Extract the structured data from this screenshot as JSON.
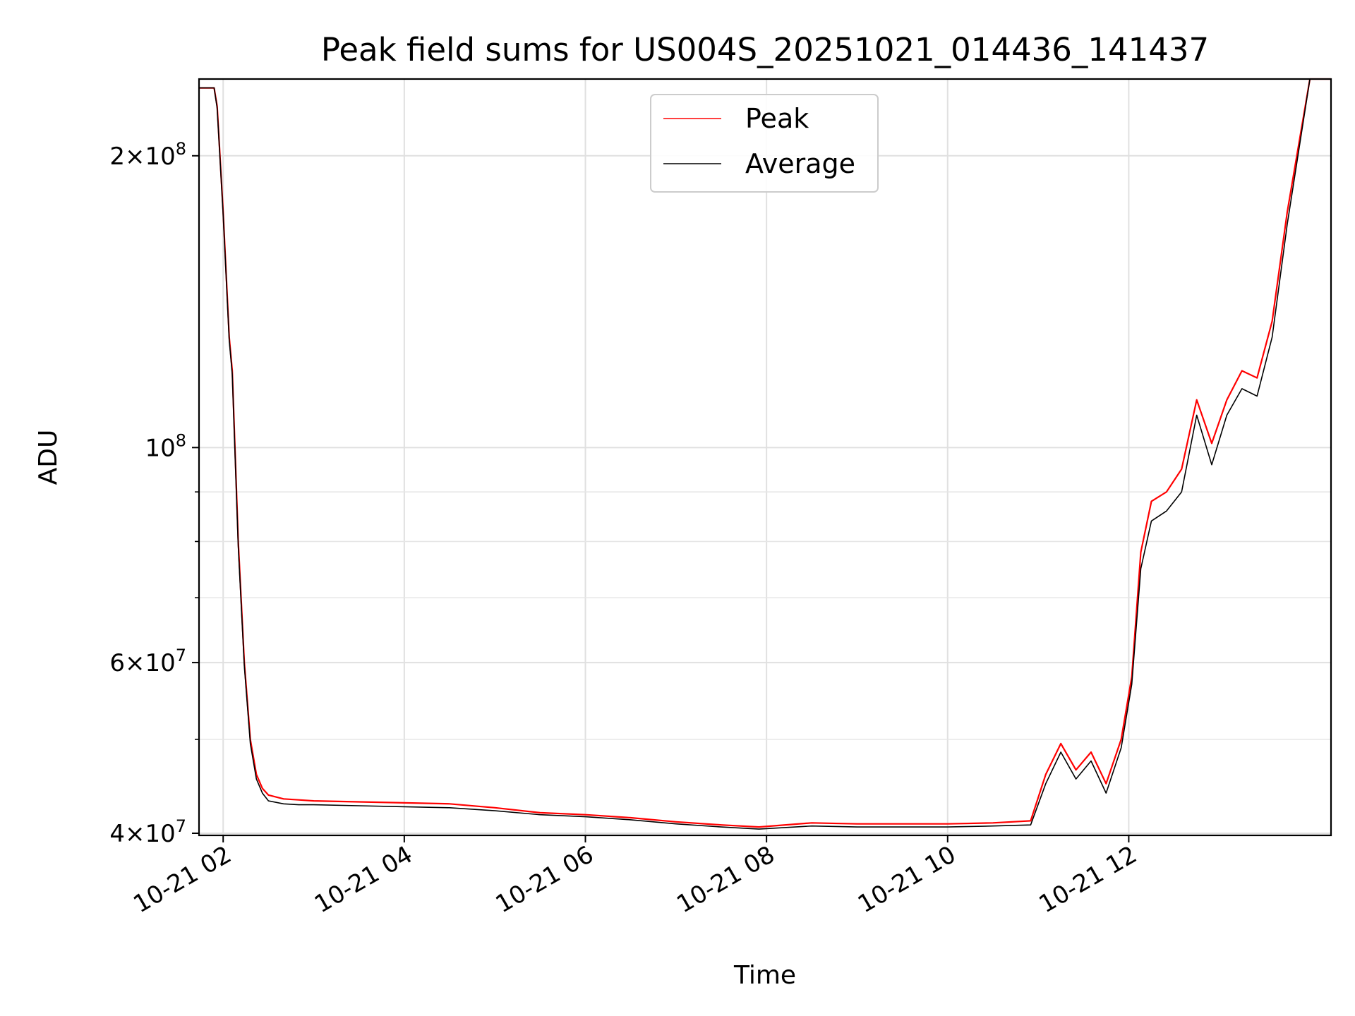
{
  "chart_data": {
    "type": "line",
    "title": "Peak field sums for US004S_20251021_014436_141437",
    "xlabel": "Time",
    "ylabel": "ADU",
    "x_axis": "time",
    "y_scale": "log",
    "grid": true,
    "legend_position": "top-center",
    "xlim": [
      "2025-10-21 01:44",
      "2025-10-21 14:14"
    ],
    "ylim": [
      39800000,
      240000000
    ],
    "x_ticks": [
      "10-21 02",
      "10-21 04",
      "10-21 06",
      "10-21 08",
      "10-21 10",
      "10-21 12"
    ],
    "x_tick_times": [
      "2025-10-21 02:00",
      "2025-10-21 04:00",
      "2025-10-21 06:00",
      "2025-10-21 08:00",
      "2025-10-21 10:00",
      "2025-10-21 12:00"
    ],
    "y_ticks": [
      {
        "value": 40000000,
        "base": "4",
        "exp": "7"
      },
      {
        "value": 60000000,
        "base": "6",
        "exp": "7"
      },
      {
        "value": 100000000,
        "base": "",
        "exp": "8"
      },
      {
        "value": 200000000,
        "base": "2",
        "exp": "8"
      }
    ],
    "y_minor_ticks": [
      50000000,
      70000000,
      80000000,
      90000000
    ],
    "series": [
      {
        "name": "Peak",
        "color": "#ff0000",
        "x": [
          "2025-10-21 01:44",
          "2025-10-21 01:54",
          "2025-10-21 01:56",
          "2025-10-21 02:00",
          "2025-10-21 02:04",
          "2025-10-21 02:06",
          "2025-10-21 02:10",
          "2025-10-21 02:14",
          "2025-10-21 02:18",
          "2025-10-21 02:22",
          "2025-10-21 02:26",
          "2025-10-21 02:30",
          "2025-10-21 02:40",
          "2025-10-21 02:50",
          "2025-10-21 03:00",
          "2025-10-21 03:30",
          "2025-10-21 04:00",
          "2025-10-21 04:30",
          "2025-10-21 05:00",
          "2025-10-21 05:30",
          "2025-10-21 06:00",
          "2025-10-21 06:30",
          "2025-10-21 07:00",
          "2025-10-21 07:30",
          "2025-10-21 07:55",
          "2025-10-21 08:30",
          "2025-10-21 09:00",
          "2025-10-21 09:30",
          "2025-10-21 10:00",
          "2025-10-21 10:30",
          "2025-10-21 10:55",
          "2025-10-21 11:05",
          "2025-10-21 11:15",
          "2025-10-21 11:25",
          "2025-10-21 11:35",
          "2025-10-21 11:45",
          "2025-10-21 11:55",
          "2025-10-21 12:02",
          "2025-10-21 12:08",
          "2025-10-21 12:15",
          "2025-10-21 12:25",
          "2025-10-21 12:35",
          "2025-10-21 12:45",
          "2025-10-21 12:55",
          "2025-10-21 13:05",
          "2025-10-21 13:15",
          "2025-10-21 13:25",
          "2025-10-21 13:35",
          "2025-10-21 13:45",
          "2025-10-21 14:00",
          "2025-10-21 14:14"
        ],
        "values": [
          235000000,
          235000000,
          225000000,
          175000000,
          130000000,
          120000000,
          80000000,
          60000000,
          50000000,
          46000000,
          44500000,
          43800000,
          43400000,
          43300000,
          43200000,
          43100000,
          43000000,
          42900000,
          42500000,
          42000000,
          41800000,
          41500000,
          41100000,
          40800000,
          40600000,
          41000000,
          40900000,
          40900000,
          40900000,
          41000000,
          41200000,
          46000000,
          49500000,
          46500000,
          48500000,
          45000000,
          50000000,
          58000000,
          78000000,
          88000000,
          90000000,
          95000000,
          112000000,
          101000000,
          112000000,
          120000000,
          118000000,
          135000000,
          175000000,
          240000000,
          240000000
        ]
      },
      {
        "name": "Average",
        "color": "#000000",
        "x": [
          "2025-10-21 01:44",
          "2025-10-21 01:54",
          "2025-10-21 01:56",
          "2025-10-21 02:00",
          "2025-10-21 02:04",
          "2025-10-21 02:06",
          "2025-10-21 02:10",
          "2025-10-21 02:14",
          "2025-10-21 02:18",
          "2025-10-21 02:22",
          "2025-10-21 02:26",
          "2025-10-21 02:30",
          "2025-10-21 02:40",
          "2025-10-21 02:50",
          "2025-10-21 03:00",
          "2025-10-21 03:30",
          "2025-10-21 04:00",
          "2025-10-21 04:30",
          "2025-10-21 05:00",
          "2025-10-21 05:30",
          "2025-10-21 06:00",
          "2025-10-21 06:30",
          "2025-10-21 07:00",
          "2025-10-21 07:30",
          "2025-10-21 07:55",
          "2025-10-21 08:30",
          "2025-10-21 09:00",
          "2025-10-21 09:30",
          "2025-10-21 10:00",
          "2025-10-21 10:30",
          "2025-10-21 10:55",
          "2025-10-21 11:05",
          "2025-10-21 11:15",
          "2025-10-21 11:25",
          "2025-10-21 11:35",
          "2025-10-21 11:45",
          "2025-10-21 11:55",
          "2025-10-21 12:02",
          "2025-10-21 12:08",
          "2025-10-21 12:15",
          "2025-10-21 12:25",
          "2025-10-21 12:35",
          "2025-10-21 12:45",
          "2025-10-21 12:55",
          "2025-10-21 13:05",
          "2025-10-21 13:15",
          "2025-10-21 13:25",
          "2025-10-21 13:35",
          "2025-10-21 13:45",
          "2025-10-21 14:00",
          "2025-10-21 14:14"
        ],
        "values": [
          235000000,
          235000000,
          224000000,
          174000000,
          129000000,
          119000000,
          79000000,
          59500000,
          49500000,
          45500000,
          44000000,
          43200000,
          42900000,
          42800000,
          42800000,
          42700000,
          42600000,
          42500000,
          42200000,
          41800000,
          41600000,
          41300000,
          40900000,
          40600000,
          40400000,
          40700000,
          40600000,
          40600000,
          40600000,
          40700000,
          40800000,
          45000000,
          48500000,
          45500000,
          47500000,
          44000000,
          49000000,
          57000000,
          75000000,
          84000000,
          86000000,
          90000000,
          108000000,
          96000000,
          108000000,
          115000000,
          113000000,
          130000000,
          170000000,
          240000000,
          240000000
        ]
      }
    ]
  }
}
